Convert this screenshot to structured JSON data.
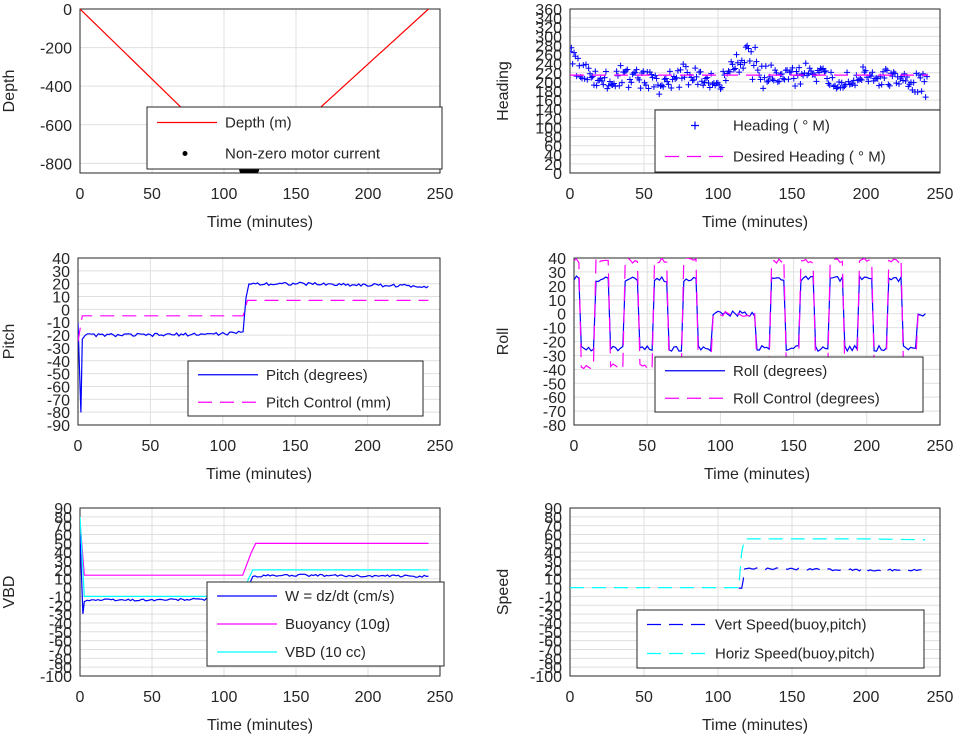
{
  "colors": {
    "depth": "#ff0000",
    "dot": "#000000",
    "heading": "#0000ff",
    "desired": "#ff00ff",
    "pitch": "#0000ff",
    "pitch_control": "#ff00ff",
    "roll": "#0000ff",
    "roll_control": "#ff00ff",
    "w": "#0000ff",
    "buoyancy": "#ff00ff",
    "vbd": "#00ffff",
    "vert_speed": "#0000ff",
    "horiz_speed": "#00ffff"
  },
  "chart_data": [
    {
      "type": "line",
      "xlabel": "Time (minutes)",
      "ylabel": "Depth",
      "xlim": [
        0,
        250
      ],
      "ylim": [
        -850,
        0
      ],
      "xticks": [
        "0",
        "50",
        "100",
        "150",
        "200",
        "250"
      ],
      "yticks": [
        "0",
        "-200",
        "-400",
        "-600",
        "-800"
      ],
      "grid": true,
      "legend_position": "bottom-right",
      "series": [
        {
          "name": "Depth (m)",
          "x": [
            0,
            117,
            242
          ],
          "y": [
            0,
            -850,
            0
          ]
        },
        {
          "name": "Non-zero motor current",
          "x": [
            113,
            114,
            115,
            116,
            117,
            118,
            119,
            120,
            121,
            122
          ],
          "y": [
            -835,
            -840,
            -843,
            -845,
            -847,
            -846,
            -844,
            -842,
            -838,
            -834
          ]
        }
      ]
    },
    {
      "type": "scatter",
      "xlabel": "Time (minutes)",
      "ylabel": "Heading",
      "xlim": [
        0,
        250
      ],
      "ylim": [
        0,
        360
      ],
      "xticks": [
        "0",
        "50",
        "100",
        "150",
        "200",
        "250"
      ],
      "yticks": [
        "0",
        "20",
        "40",
        "60",
        "80",
        "100",
        "120",
        "140",
        "160",
        "180",
        "200",
        "220",
        "240",
        "260",
        "280",
        "300",
        "320",
        "340",
        "360"
      ],
      "grid": true,
      "legend_position": "bottom-right",
      "series": [
        {
          "name": "Heading ( ° M)",
          "x": [
            0,
            5,
            20,
            40,
            60,
            80,
            100,
            120,
            140,
            160,
            180,
            200,
            220,
            240
          ],
          "y": [
            300,
            270,
            200,
            240,
            190,
            245,
            200,
            300,
            215,
            250,
            200,
            240,
            210,
            190
          ]
        },
        {
          "name": "Desired Heading ( ° M)",
          "x": [
            0,
            242
          ],
          "y": [
            215,
            215
          ]
        }
      ]
    },
    {
      "type": "line",
      "xlabel": "Time (minutes)",
      "ylabel": "Pitch",
      "xlim": [
        0,
        250
      ],
      "ylim": [
        -90,
        40
      ],
      "xticks": [
        "0",
        "50",
        "100",
        "150",
        "200",
        "250"
      ],
      "yticks": [
        "40",
        "30",
        "20",
        "10",
        "0",
        "-10",
        "-20",
        "-30",
        "-40",
        "-50",
        "-60",
        "-70",
        "-80",
        "-90"
      ],
      "grid": true,
      "legend_position": "bottom-right",
      "series": [
        {
          "name": "Pitch (degrees)",
          "x": [
            0,
            2,
            3,
            5,
            50,
            100,
            114,
            116,
            118,
            150,
            200,
            242
          ],
          "y": [
            -10,
            -80,
            -22,
            -20,
            -20,
            -19,
            -18,
            10,
            20,
            20,
            19,
            18
          ]
        },
        {
          "name": "Pitch Control (mm)",
          "x": [
            0,
            3,
            5,
            114,
            117,
            242
          ],
          "y": [
            -25,
            -5,
            -5,
            -5,
            7,
            7
          ]
        }
      ]
    },
    {
      "type": "line",
      "xlabel": "Time (minutes)",
      "ylabel": "Roll",
      "xlim": [
        0,
        250
      ],
      "ylim": [
        -80,
        40
      ],
      "xticks": [
        "0",
        "50",
        "100",
        "150",
        "200",
        "250"
      ],
      "yticks": [
        "40",
        "30",
        "20",
        "10",
        "0",
        "-10",
        "-20",
        "-30",
        "-40",
        "-50",
        "-60",
        "-70",
        "-80"
      ],
      "grid": true,
      "legend_position": "bottom-right",
      "series": [
        {
          "name": "Roll (degrees)",
          "x": [
            0,
            10,
            20,
            30,
            40,
            50,
            60,
            70,
            80,
            90,
            100,
            110,
            120,
            130,
            140,
            150,
            160,
            170,
            180,
            190,
            200,
            210,
            220,
            230,
            240
          ],
          "y": [
            25,
            -25,
            25,
            -25,
            25,
            -25,
            25,
            -25,
            25,
            -25,
            0,
            0,
            0,
            -25,
            25,
            -25,
            25,
            -25,
            25,
            -25,
            25,
            -25,
            25,
            -25,
            0
          ]
        },
        {
          "name": "Roll Control (degrees)",
          "x": [
            0,
            10,
            20,
            30,
            40,
            50,
            60,
            70,
            80,
            90,
            100,
            110,
            120,
            130,
            140,
            150,
            160,
            170,
            180,
            190,
            200,
            210,
            220,
            230,
            240
          ],
          "y": [
            38,
            -38,
            38,
            -38,
            38,
            -38,
            38,
            -38,
            38,
            -38,
            0,
            0,
            0,
            -38,
            38,
            -38,
            38,
            -38,
            38,
            -38,
            38,
            -38,
            38,
            -38,
            0
          ]
        }
      ]
    },
    {
      "type": "line",
      "xlabel": "Time (minutes)",
      "ylabel": "VBD",
      "xlim": [
        0,
        250
      ],
      "ylim": [
        -100,
        90
      ],
      "xticks": [
        "0",
        "50",
        "100",
        "150",
        "200",
        "250"
      ],
      "yticks": [
        "90",
        "80",
        "70",
        "60",
        "50",
        "40",
        "30",
        "20",
        "10",
        "0",
        "-10",
        "-20",
        "-30",
        "-40",
        "-50",
        "-60",
        "-70",
        "-80",
        "-90",
        "-100"
      ],
      "grid": true,
      "legend_position": "bottom-right",
      "series": [
        {
          "name": "W = dz/dt (cm/s)",
          "x": [
            0,
            2,
            3,
            5,
            50,
            100,
            113,
            116,
            120,
            150,
            200,
            242
          ],
          "y": [
            60,
            -30,
            -15,
            -14,
            -14,
            -13,
            -12,
            -5,
            13,
            14,
            13,
            13
          ]
        },
        {
          "name": "Buoyancy (10g)",
          "x": [
            0,
            3,
            113,
            119,
            122,
            242
          ],
          "y": [
            75,
            14,
            14,
            40,
            50,
            50
          ]
        },
        {
          "name": "VBD (10 cc)",
          "x": [
            0,
            3,
            113,
            117,
            120,
            242
          ],
          "y": [
            80,
            -10,
            -10,
            10,
            20,
            20
          ]
        }
      ]
    },
    {
      "type": "line",
      "xlabel": "Time (minutes)",
      "ylabel": "Speed",
      "xlim": [
        0,
        250
      ],
      "ylim": [
        -100,
        90
      ],
      "xticks": [
        "0",
        "50",
        "100",
        "150",
        "200",
        "250"
      ],
      "yticks": [
        "90",
        "80",
        "70",
        "60",
        "50",
        "40",
        "30",
        "20",
        "10",
        "0",
        "-10",
        "-20",
        "-30",
        "-40",
        "-50",
        "-60",
        "-70",
        "-80",
        "-90",
        "-100"
      ],
      "grid": true,
      "legend_position": "bottom-right",
      "series": [
        {
          "name": "Vert Speed(buoy,pitch)",
          "x": [
            114,
            116,
            117,
            118,
            120,
            150,
            200,
            240
          ],
          "y": [
            0,
            0,
            8,
            20,
            21,
            21,
            20,
            20
          ]
        },
        {
          "name": "Horiz Speed(buoy,pitch)",
          "x": [
            0,
            114,
            116,
            118,
            120,
            150,
            200,
            240
          ],
          "y": [
            0,
            0,
            40,
            55,
            55,
            55,
            55,
            54
          ]
        }
      ]
    }
  ]
}
